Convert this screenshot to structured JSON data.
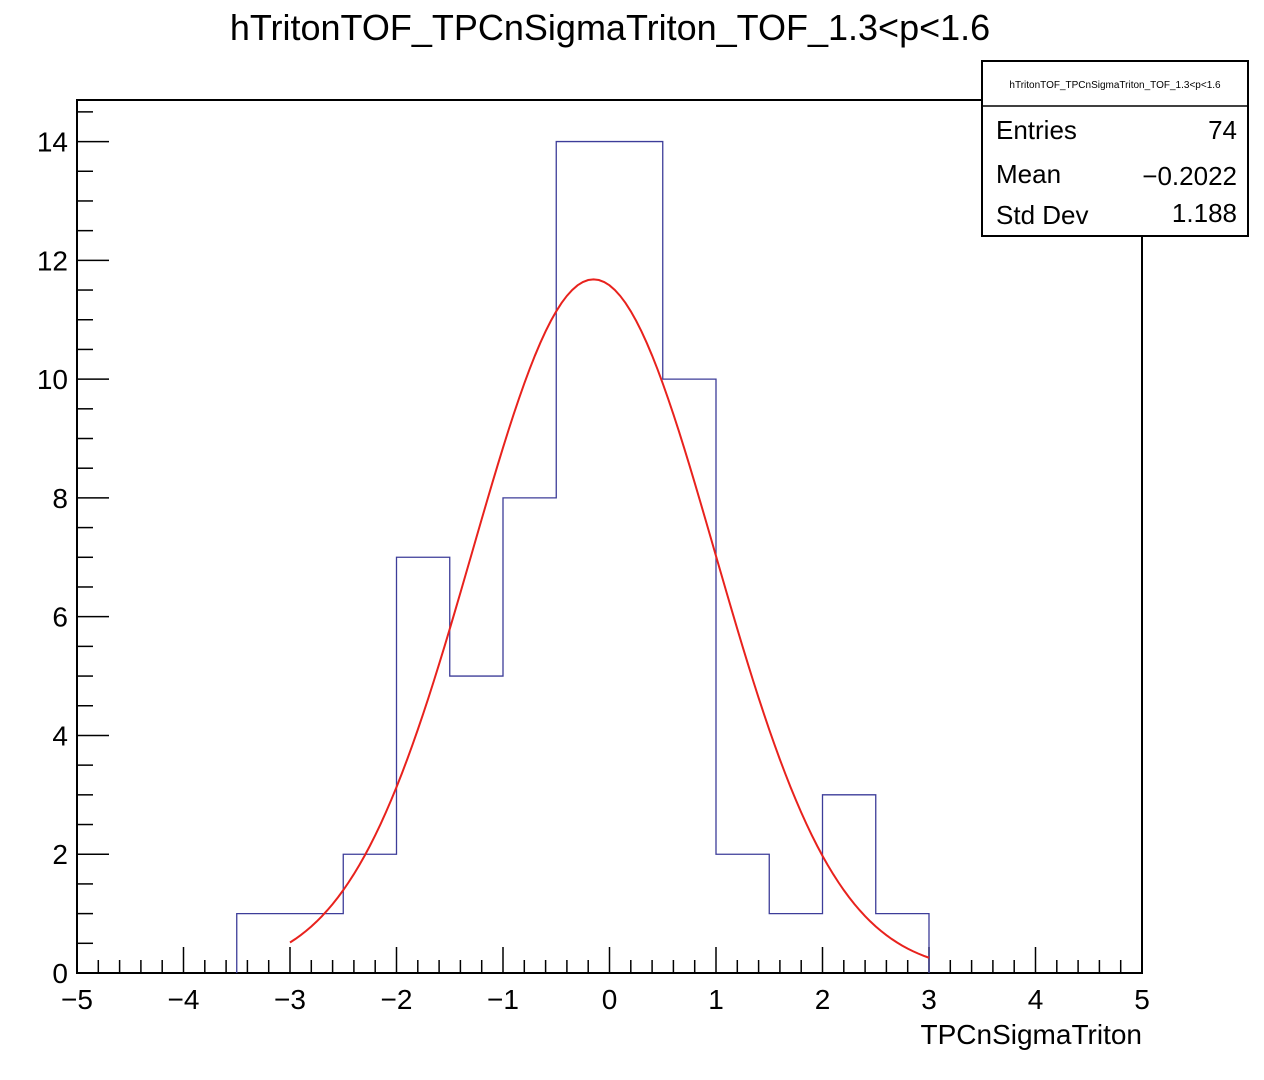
{
  "chart_data": {
    "type": "histogram",
    "title": "hTritonTOF_TPCnSigmaTriton_TOF_1.3<p<1.6",
    "xlabel": "TPCnSigmaTriton",
    "ylabel": "",
    "xlim": [
      -5,
      5
    ],
    "ylim": [
      0,
      14.7
    ],
    "x_ticks": [
      "−5",
      "−4",
      "−3",
      "−2",
      "−1",
      "0",
      "1",
      "2",
      "3",
      "4",
      "5"
    ],
    "y_ticks": [
      "0",
      "2",
      "4",
      "6",
      "8",
      "10",
      "12",
      "14"
    ],
    "bin_width": 0.5,
    "bins": [
      {
        "x_low": -3.5,
        "x_high": -3.0,
        "value": 1
      },
      {
        "x_low": -3.0,
        "x_high": -2.5,
        "value": 1
      },
      {
        "x_low": -2.5,
        "x_high": -2.0,
        "value": 2
      },
      {
        "x_low": -2.0,
        "x_high": -1.5,
        "value": 7
      },
      {
        "x_low": -1.5,
        "x_high": -1.0,
        "value": 5
      },
      {
        "x_low": -1.0,
        "x_high": -0.5,
        "value": 8
      },
      {
        "x_low": -0.5,
        "x_high": 0.0,
        "value": 14
      },
      {
        "x_low": 0.0,
        "x_high": 0.5,
        "value": 14
      },
      {
        "x_low": 0.5,
        "x_high": 1.0,
        "value": 10
      },
      {
        "x_low": 1.0,
        "x_high": 1.5,
        "value": 2
      },
      {
        "x_low": 1.5,
        "x_high": 2.0,
        "value": 1
      },
      {
        "x_low": 2.0,
        "x_high": 2.5,
        "value": 3
      },
      {
        "x_low": 2.5,
        "x_high": 3.0,
        "value": 1
      }
    ],
    "fit": {
      "function": "gaus",
      "range": [
        -3,
        3
      ],
      "amplitude": 11.68,
      "mean": -0.15,
      "sigma": 1.14
    },
    "histogram_color": "#3d3d99",
    "fit_color": "#e8221d",
    "stats_box": {
      "title": "hTritonTOF_TPCnSigmaTriton_TOF_1.3<p<1.6",
      "placement": "top-right",
      "rows": [
        {
          "label": "Entries",
          "value": "74"
        },
        {
          "label": "Mean",
          "value": "−0.2022"
        },
        {
          "label": "Std Dev",
          "value": "1.188"
        }
      ]
    }
  }
}
